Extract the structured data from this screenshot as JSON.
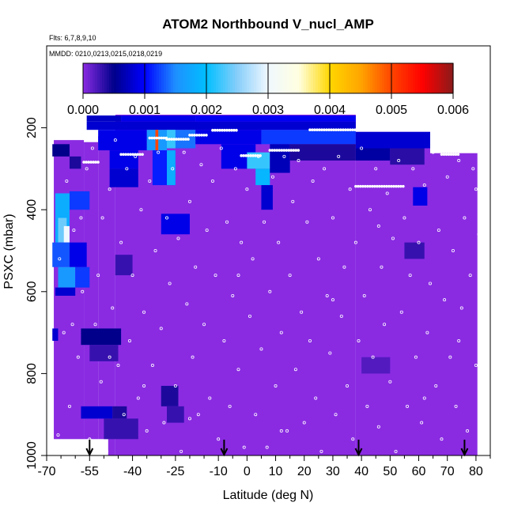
{
  "chart_data": {
    "type": "heatmap",
    "title": "ATOM2 Northbound V_nucl_AMP",
    "flights_label": "Flts: 6,7,8,9,10",
    "dates_label": "MMDD: 0210,0213,0215,0218,0219",
    "xlabel": "Latitude (deg N)",
    "ylabel": "PSXC (mbar)",
    "xlim": [
      -70,
      85
    ],
    "ylim": [
      1000,
      0
    ],
    "x_ticks": [
      -70,
      -55,
      -40,
      -25,
      -10,
      0,
      10,
      20,
      30,
      40,
      50,
      60,
      70,
      80
    ],
    "x_tick_labels": [
      "-70",
      "-55",
      "-40",
      "-25",
      "-10",
      "0",
      "10",
      "20",
      "30",
      "40",
      "50",
      "60",
      "70",
      "80"
    ],
    "x_minor_ticks": [
      -65,
      -60,
      -50,
      -45,
      -35,
      -30,
      -20,
      -15,
      -5,
      5,
      15,
      25,
      35,
      45,
      55,
      65,
      75,
      85
    ],
    "y_ticks": [
      200,
      400,
      600,
      800,
      1000
    ],
    "y_tick_labels": [
      "200",
      "400",
      "600",
      "800",
      "1000"
    ],
    "colorbar": {
      "min": 0.0,
      "max": 0.006,
      "ticks": [
        "0.000",
        "0.001",
        "0.002",
        "0.003",
        "0.004",
        "0.005",
        "0.006"
      ],
      "colors": [
        "#8a2be2",
        "#00008b",
        "#0000ff",
        "#1e90ff",
        "#00bfff",
        "#87cefa",
        "#f0f8ff",
        "#ffffe0",
        "#ffd700",
        "#ffa500",
        "#ff4500",
        "#ff0000",
        "#8b1a1a"
      ]
    },
    "background_value": 0.0,
    "cells": [
      {
        "lat": [
          -56,
          -44
        ],
        "p": [
          170,
          185
        ],
        "v": 0.00075
      },
      {
        "lat": [
          -44,
          -18
        ],
        "p": [
          170,
          185
        ],
        "v": 0.0009
      },
      {
        "lat": [
          -18,
          38
        ],
        "p": [
          170,
          185
        ],
        "v": 0.00095
      },
      {
        "lat": [
          -56,
          38
        ],
        "p": [
          185,
          205
        ],
        "v": 0.0008
      },
      {
        "lat": [
          -52,
          -35
        ],
        "p": [
          205,
          255
        ],
        "v": 0.0009
      },
      {
        "lat": [
          -35,
          -28
        ],
        "p": [
          205,
          255
        ],
        "v": 0.0016
      },
      {
        "lat": [
          -32,
          -31
        ],
        "p": [
          205,
          255
        ],
        "v": 0.005
      },
      {
        "lat": [
          -28,
          -18
        ],
        "p": [
          205,
          250
        ],
        "v": 0.0014
      },
      {
        "lat": [
          -28,
          -25
        ],
        "p": [
          205,
          250
        ],
        "v": 0.0022
      },
      {
        "lat": [
          -18,
          5
        ],
        "p": [
          205,
          240
        ],
        "v": 0.0009
      },
      {
        "lat": [
          5,
          38
        ],
        "p": [
          205,
          240
        ],
        "v": 0.0012
      },
      {
        "lat": [
          38,
          64
        ],
        "p": [
          210,
          250
        ],
        "v": 0.0008
      },
      {
        "lat": [
          38,
          50
        ],
        "p": [
          250,
          280
        ],
        "v": 0.0006
      },
      {
        "lat": [
          50,
          62
        ],
        "p": [
          250,
          290
        ],
        "v": 0.00035
      },
      {
        "lat": [
          -48,
          -38
        ],
        "p": [
          255,
          300
        ],
        "v": 0.0009
      },
      {
        "lat": [
          -48,
          -38
        ],
        "p": [
          300,
          345
        ],
        "v": 0.0008
      },
      {
        "lat": [
          -33,
          -25
        ],
        "p": [
          255,
          340
        ],
        "v": 0.0011
      },
      {
        "lat": [
          -28,
          -25
        ],
        "p": [
          255,
          340
        ],
        "v": 0.0018
      },
      {
        "lat": [
          -9,
          3
        ],
        "p": [
          240,
          300
        ],
        "v": 0.0009
      },
      {
        "lat": [
          0,
          8
        ],
        "p": [
          260,
          300
        ],
        "v": 0.0022
      },
      {
        "lat": [
          3,
          8
        ],
        "p": [
          300,
          340
        ],
        "v": 0.0019
      },
      {
        "lat": [
          5,
          9
        ],
        "p": [
          340,
          400
        ],
        "v": 0.0008
      },
      {
        "lat": [
          8,
          15
        ],
        "p": [
          240,
          310
        ],
        "v": 0.0007
      },
      {
        "lat": [
          15,
          38
        ],
        "p": [
          240,
          280
        ],
        "v": 0.0004
      },
      {
        "lat": [
          58,
          63
        ],
        "p": [
          345,
          390
        ],
        "v": 0.0009
      },
      {
        "lat": [
          -68,
          -62
        ],
        "p": [
          240,
          270
        ],
        "v": 0.0005
      },
      {
        "lat": [
          -62,
          -58
        ],
        "p": [
          270,
          300
        ],
        "v": 0.0004
      },
      {
        "lat": [
          -62,
          -55
        ],
        "p": [
          355,
          400
        ],
        "v": 0.0012
      },
      {
        "lat": [
          -67,
          -62
        ],
        "p": [
          360,
          480
        ],
        "v": 0.0018
      },
      {
        "lat": [
          -66,
          -63
        ],
        "p": [
          420,
          480
        ],
        "v": 0.0024
      },
      {
        "lat": [
          -64,
          -62
        ],
        "p": [
          440,
          480
        ],
        "v": 0.003
      },
      {
        "lat": [
          -68,
          -62
        ],
        "p": [
          480,
          540
        ],
        "v": 0.0013
      },
      {
        "lat": [
          -62,
          -56
        ],
        "p": [
          480,
          540
        ],
        "v": 0.0009
      },
      {
        "lat": [
          -66,
          -60
        ],
        "p": [
          540,
          590
        ],
        "v": 0.0016
      },
      {
        "lat": [
          -60,
          -55
        ],
        "p": [
          540,
          590
        ],
        "v": 0.0012
      },
      {
        "lat": [
          -67,
          -60
        ],
        "p": [
          590,
          610
        ],
        "v": 0.0008
      },
      {
        "lat": [
          -30,
          -20
        ],
        "p": [
          410,
          460
        ],
        "v": 0.0009
      },
      {
        "lat": [
          -46,
          -40
        ],
        "p": [
          510,
          560
        ],
        "v": 0.0003
      },
      {
        "lat": [
          -68,
          -66
        ],
        "p": [
          690,
          720
        ],
        "v": 0.0008
      },
      {
        "lat": [
          -58,
          -44
        ],
        "p": [
          690,
          730
        ],
        "v": 0.0005
      },
      {
        "lat": [
          -55,
          -45
        ],
        "p": [
          730,
          770
        ],
        "v": 0.0003
      },
      {
        "lat": [
          -58,
          -47
        ],
        "p": [
          880,
          910
        ],
        "v": 0.0008
      },
      {
        "lat": [
          -47,
          -42
        ],
        "p": [
          880,
          910
        ],
        "v": 0.0004
      },
      {
        "lat": [
          -50,
          -38
        ],
        "p": [
          910,
          960
        ],
        "v": 0.0003
      },
      {
        "lat": [
          -30,
          -24
        ],
        "p": [
          830,
          880
        ],
        "v": 0.0004
      },
      {
        "lat": [
          -28,
          -22
        ],
        "p": [
          880,
          920
        ],
        "v": 0.0003
      },
      {
        "lat": [
          55,
          62
        ],
        "p": [
          480,
          520
        ],
        "v": 0.0003
      },
      {
        "lat": [
          40,
          50
        ],
        "p": [
          760,
          800
        ],
        "v": 0.0002
      }
    ],
    "flight_tracks": [
      {
        "lat": [
          -66,
          -64
        ],
        "p": 195
      },
      {
        "lat": [
          -64,
          -62
        ],
        "p": 185
      },
      {
        "lat": [
          -57,
          -52
        ],
        "p": 284
      },
      {
        "lat": [
          -44,
          -36
        ],
        "p": 265
      },
      {
        "lat": [
          -34,
          -28
        ],
        "p": 225
      },
      {
        "lat": [
          -28,
          -20
        ],
        "p": 228
      },
      {
        "lat": [
          -20,
          -14
        ],
        "p": 218
      },
      {
        "lat": [
          -12,
          -3
        ],
        "p": 206
      },
      {
        "lat": [
          -2,
          5
        ],
        "p": 268
      },
      {
        "lat": [
          8,
          18
        ],
        "p": 255
      },
      {
        "lat": [
          22,
          38
        ],
        "p": 205
      },
      {
        "lat": [
          38,
          55
        ],
        "p": 343
      },
      {
        "lat": [
          68,
          74
        ],
        "p": 265
      }
    ],
    "sample_points": [
      [
        -67.8,
        220
      ],
      [
        -66,
        950
      ],
      [
        -65.5,
        520
      ],
      [
        -64,
        700
      ],
      [
        -63,
        330
      ],
      [
        -62,
        880
      ],
      [
        -60.5,
        450
      ],
      [
        -59,
        760
      ],
      [
        -57.5,
        600
      ],
      [
        -56,
        300
      ],
      [
        -55,
        960
      ],
      [
        -54,
        250
      ],
      [
        -53,
        680
      ],
      [
        -52,
        560
      ],
      [
        -51,
        820
      ],
      [
        -50.5,
        420
      ],
      [
        -49,
        990
      ],
      [
        -48,
        350
      ],
      [
        -47,
        640
      ],
      [
        -46,
        230
      ],
      [
        -45,
        780
      ],
      [
        -44,
        480
      ],
      [
        -43,
        900
      ],
      [
        -42,
        300
      ],
      [
        -41,
        720
      ],
      [
        -40,
        560
      ],
      [
        -39,
        270
      ],
      [
        -38,
        860
      ],
      [
        -37,
        400
      ],
      [
        -36,
        650
      ],
      [
        -35,
        940
      ],
      [
        -34,
        330
      ],
      [
        -33,
        780
      ],
      [
        -32,
        500
      ],
      [
        -31,
        260
      ],
      [
        -30,
        690
      ],
      [
        -29,
        920
      ],
      [
        -28,
        420
      ],
      [
        -27,
        580
      ],
      [
        -26,
        300
      ],
      [
        -25,
        830
      ],
      [
        -24,
        470
      ],
      [
        -23,
        990
      ],
      [
        -22,
        260
      ],
      [
        -21,
        630
      ],
      [
        -20,
        380
      ],
      [
        -19,
        760
      ],
      [
        -18,
        540
      ],
      [
        -17,
        900
      ],
      [
        -16,
        290
      ],
      [
        -15,
        680
      ],
      [
        -14,
        450
      ],
      [
        -13,
        860
      ],
      [
        -12,
        330
      ],
      [
        -11,
        560
      ],
      [
        -10,
        960
      ],
      [
        -9,
        250
      ],
      [
        -8,
        720
      ],
      [
        -7,
        430
      ],
      [
        -6,
        880
      ],
      [
        -5,
        610
      ],
      [
        -4,
        300
      ],
      [
        -3,
        790
      ],
      [
        -2,
        480
      ],
      [
        -1,
        980
      ],
      [
        0,
        350
      ],
      [
        1,
        660
      ],
      [
        2,
        520
      ],
      [
        3,
        900
      ],
      [
        4,
        270
      ],
      [
        5,
        740
      ],
      [
        6,
        430
      ],
      [
        7,
        980
      ],
      [
        8,
        600
      ],
      [
        9,
        320
      ],
      [
        10,
        830
      ],
      [
        11,
        480
      ],
      [
        12,
        700
      ],
      [
        13,
        270
      ],
      [
        14,
        940
      ],
      [
        15,
        560
      ],
      [
        16,
        380
      ],
      [
        17,
        790
      ],
      [
        18,
        280
      ],
      [
        19,
        650
      ],
      [
        20,
        920
      ],
      [
        21,
        430
      ],
      [
        22,
        720
      ],
      [
        23,
        330
      ],
      [
        24,
        860
      ],
      [
        25,
        520
      ],
      [
        26,
        990
      ],
      [
        27,
        300
      ],
      [
        28,
        610
      ],
      [
        29,
        750
      ],
      [
        30,
        420
      ],
      [
        31,
        900
      ],
      [
        32,
        270
      ],
      [
        33,
        660
      ],
      [
        34,
        540
      ],
      [
        35,
        830
      ],
      [
        36,
        350
      ],
      [
        37,
        960
      ],
      [
        38,
        480
      ],
      [
        39,
        720
      ],
      [
        40,
        250
      ],
      [
        41,
        610
      ],
      [
        42,
        880
      ],
      [
        43,
        400
      ],
      [
        44,
        760
      ],
      [
        45,
        300
      ],
      [
        46,
        930
      ],
      [
        47,
        540
      ],
      [
        48,
        680
      ],
      [
        49,
        360
      ],
      [
        50,
        820
      ],
      [
        51,
        470
      ],
      [
        52,
        990
      ],
      [
        53,
        280
      ],
      [
        54,
        650
      ],
      [
        55,
        420
      ],
      [
        56,
        880
      ],
      [
        57,
        560
      ],
      [
        58,
        300
      ],
      [
        59,
        760
      ],
      [
        60,
        480
      ],
      [
        61,
        920
      ],
      [
        62,
        340
      ],
      [
        63,
        700
      ],
      [
        64,
        580
      ],
      [
        65,
        260
      ],
      [
        66,
        830
      ],
      [
        67,
        450
      ],
      [
        68,
        960
      ],
      [
        69,
        620
      ],
      [
        70,
        320
      ],
      [
        71,
        760
      ],
      [
        72,
        500
      ],
      [
        73,
        880
      ],
      [
        74,
        280
      ],
      [
        75,
        640
      ],
      [
        76,
        420
      ],
      [
        77,
        940
      ],
      [
        78,
        560
      ],
      [
        79,
        300
      ],
      [
        80,
        780
      ],
      [
        81,
        460
      ],
      [
        82,
        990
      ],
      [
        -58,
        420
      ],
      [
        -61,
        680
      ],
      [
        -48,
        760
      ],
      [
        -36,
        830
      ],
      [
        -20,
        910
      ],
      [
        -3,
        560
      ],
      [
        12,
        940
      ],
      [
        30,
        620
      ],
      [
        46,
        440
      ],
      [
        62,
        860
      ],
      [
        74,
        720
      ],
      [
        80,
        350
      ]
    ],
    "arrows_lat": [
      -55,
      -8,
      39,
      76
    ]
  }
}
